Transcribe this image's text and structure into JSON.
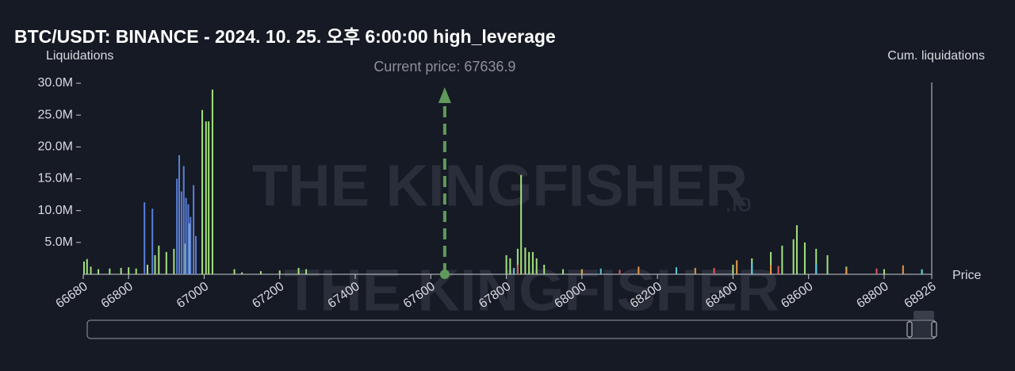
{
  "chart_data": {
    "type": "bar",
    "title": "BTC/USDT: BINANCE - 2024. 10. 25. 오후 6:00:00 high_leverage",
    "y_label": "Liquidations",
    "y2_label": "Cum. liquidations",
    "x_label": "Price",
    "watermark": "THE KINGFISHER",
    "watermark_suffix": ".io",
    "current_price": {
      "value": 67636.9,
      "label": "Current price: 67636.9"
    },
    "xlim": [
      66680,
      68926
    ],
    "xticks": [
      66680,
      66800,
      67000,
      67200,
      67400,
      67600,
      67800,
      68000,
      68200,
      68400,
      68600,
      68800,
      68926
    ],
    "ylim": [
      0,
      30000000
    ],
    "yticks": [
      {
        "value": 5000000,
        "label": "5.0M"
      },
      {
        "value": 10000000,
        "label": "10.0M"
      },
      {
        "value": 15000000,
        "label": "15.0M"
      },
      {
        "value": 20000000,
        "label": "20.0M"
      },
      {
        "value": 25000000,
        "label": "25.0M"
      },
      {
        "value": 30000000,
        "label": "30.0M"
      }
    ],
    "series": [
      {
        "color": "#a3e27e",
        "x": [
          66682,
          66690,
          66700,
          66720,
          66750,
          66780,
          66800,
          66820,
          66850,
          66870,
          66880,
          66900,
          66920,
          66950,
          66962,
          66995,
          67005,
          67012,
          67022,
          67080,
          67100,
          67150,
          67200,
          67250,
          67270,
          67800,
          67810,
          67830,
          67839,
          67850,
          67860,
          67870,
          67880,
          67900,
          67950,
          68000,
          68400,
          68450,
          68500,
          68530,
          68560,
          68569,
          68590,
          68620,
          68650,
          68700,
          68800,
          68900
        ],
        "values": [
          2000000,
          2400000,
          1200000,
          800000,
          900000,
          1000000,
          1100000,
          900000,
          1500000,
          3000000,
          4500000,
          3500000,
          4000000,
          4800000,
          8000000,
          25800000,
          24000000,
          24000000,
          29000000,
          800000,
          300000,
          500000,
          600000,
          1000000,
          800000,
          3000000,
          2500000,
          4000000,
          15600000,
          4200000,
          3500000,
          3500000,
          2500000,
          1500000,
          800000,
          700000,
          1500000,
          2500000,
          3500000,
          4500000,
          5500000,
          7700000,
          5000000,
          4000000,
          3000000,
          1200000,
          800000,
          600000
        ]
      },
      {
        "color": "#5a7fd8",
        "x": [
          66842,
          66863,
          66928,
          66934,
          66940,
          66946,
          66952,
          66958,
          66964,
          66972,
          66978
        ],
        "values": [
          11300000,
          10300000,
          15000000,
          18700000,
          13000000,
          17000000,
          12000000,
          11000000,
          9000000,
          14000000,
          6000000
        ]
      },
      {
        "color": "#e8974a",
        "x": [
          68000,
          68150,
          68300,
          68410,
          68500,
          68700,
          68850
        ],
        "values": [
          800000,
          1200000,
          1000000,
          2200000,
          1500000,
          900000,
          1400000
        ]
      },
      {
        "color": "#5fc8e0",
        "x": [
          67820,
          68050,
          68250,
          68450,
          68620,
          68900
        ],
        "values": [
          1000000,
          900000,
          1100000,
          1800000,
          1600000,
          800000
        ]
      },
      {
        "color": "#e25b5b",
        "x": [
          67830,
          68100,
          68350,
          68520,
          68780
        ],
        "values": [
          1500000,
          700000,
          1000000,
          1300000,
          900000
        ]
      }
    ]
  }
}
